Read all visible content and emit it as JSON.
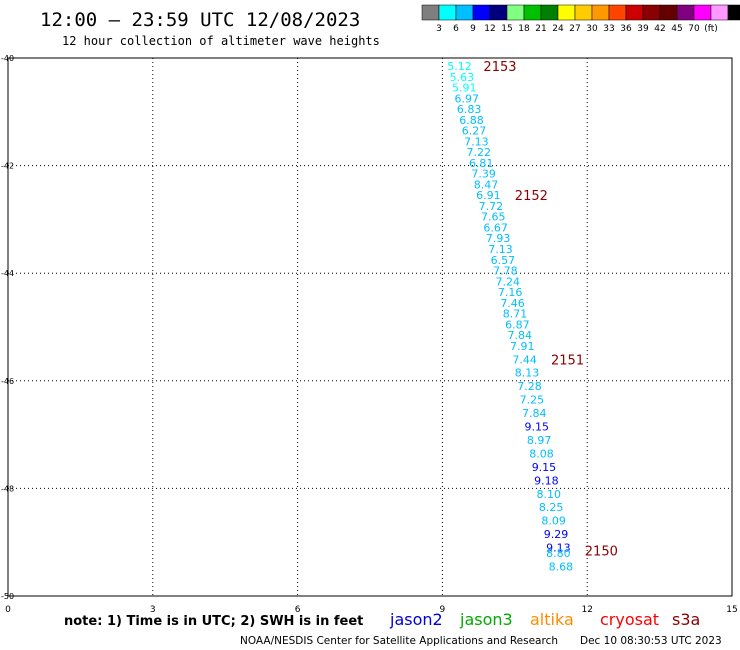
{
  "header": {
    "title": "12:00 – 23:59 UTC 12/08/2023",
    "subtitle": "12 hour collection of altimeter wave heights"
  },
  "color_scale": {
    "colors": [
      "#7f7f7f",
      "#00ffff",
      "#00bfff",
      "#0000ff",
      "#00007f",
      "#80ff80",
      "#00c000",
      "#008000",
      "#ffff00",
      "#ffcc00",
      "#ff9900",
      "#ff4500",
      "#cc0000",
      "#8b0000",
      "#660000",
      "#800080",
      "#ff00ff",
      "#ff99ff",
      "#000000"
    ],
    "labels": [
      "3",
      "6",
      "9",
      "12",
      "15",
      "18",
      "21",
      "24",
      "27",
      "30",
      "33",
      "36",
      "39",
      "42",
      "45",
      "70",
      "(ft)"
    ]
  },
  "chart_data": {
    "type": "scatter",
    "xlim": [
      0,
      15
    ],
    "ylim": [
      -50,
      -40
    ],
    "x_ticks": [
      "0",
      "3",
      "6",
      "9",
      "12",
      "15"
    ],
    "y_ticks": [
      "-40",
      "-42",
      "-44",
      "-46",
      "-48",
      "-50"
    ],
    "grid": true,
    "points": [
      {
        "x": 9.1,
        "y": -40.15,
        "v": "5.12",
        "color": "#00ffff"
      },
      {
        "x": 9.15,
        "y": -40.35,
        "v": "5.63",
        "color": "#00ffff"
      },
      {
        "x": 9.2,
        "y": -40.55,
        "v": "5.91",
        "color": "#00ffff"
      },
      {
        "x": 9.25,
        "y": -40.75,
        "v": "6.97",
        "color": "#00bfff"
      },
      {
        "x": 9.3,
        "y": -40.95,
        "v": "6.83",
        "color": "#00bfff"
      },
      {
        "x": 9.35,
        "y": -41.15,
        "v": "6.88",
        "color": "#00bfff"
      },
      {
        "x": 9.4,
        "y": -41.35,
        "v": "6.27",
        "color": "#00bfff"
      },
      {
        "x": 9.45,
        "y": -41.55,
        "v": "7.13",
        "color": "#00bfff"
      },
      {
        "x": 9.5,
        "y": -41.75,
        "v": "7.22",
        "color": "#00bfff"
      },
      {
        "x": 9.55,
        "y": -41.95,
        "v": "6.81",
        "color": "#00bfff"
      },
      {
        "x": 9.6,
        "y": -42.15,
        "v": "7.39",
        "color": "#00bfff"
      },
      {
        "x": 9.65,
        "y": -42.35,
        "v": "8.47",
        "color": "#00bfff"
      },
      {
        "x": 9.7,
        "y": -42.55,
        "v": "6.91",
        "color": "#00bfff"
      },
      {
        "x": 9.75,
        "y": -42.75,
        "v": "7.72",
        "color": "#00bfff"
      },
      {
        "x": 9.8,
        "y": -42.95,
        "v": "7.65",
        "color": "#00bfff"
      },
      {
        "x": 9.85,
        "y": -43.15,
        "v": "6.67",
        "color": "#00bfff"
      },
      {
        "x": 9.9,
        "y": -43.35,
        "v": "7.93",
        "color": "#00bfff"
      },
      {
        "x": 9.95,
        "y": -43.55,
        "v": "7.13",
        "color": "#00bfff"
      },
      {
        "x": 10.0,
        "y": -43.75,
        "v": "6.57",
        "color": "#00bfff"
      },
      {
        "x": 10.05,
        "y": -43.95,
        "v": "7.78",
        "color": "#00bfff"
      },
      {
        "x": 10.1,
        "y": -44.15,
        "v": "7.24",
        "color": "#00bfff"
      },
      {
        "x": 10.15,
        "y": -44.35,
        "v": "7.16",
        "color": "#00bfff"
      },
      {
        "x": 10.2,
        "y": -44.55,
        "v": "7.46",
        "color": "#00bfff"
      },
      {
        "x": 10.25,
        "y": -44.75,
        "v": "8.71",
        "color": "#00bfff"
      },
      {
        "x": 10.3,
        "y": -44.95,
        "v": "6.87",
        "color": "#00bfff"
      },
      {
        "x": 10.35,
        "y": -45.15,
        "v": "7.84",
        "color": "#00bfff"
      },
      {
        "x": 10.4,
        "y": -45.35,
        "v": "7.91",
        "color": "#00bfff"
      },
      {
        "x": 10.45,
        "y": -45.6,
        "v": "7.44",
        "color": "#00bfff"
      },
      {
        "x": 10.5,
        "y": -45.85,
        "v": "8.13",
        "color": "#00bfff"
      },
      {
        "x": 10.55,
        "y": -46.1,
        "v": "7.28",
        "color": "#00bfff"
      },
      {
        "x": 10.6,
        "y": -46.35,
        "v": "7.25",
        "color": "#00bfff"
      },
      {
        "x": 10.65,
        "y": -46.6,
        "v": "7.84",
        "color": "#00bfff"
      },
      {
        "x": 10.7,
        "y": -46.85,
        "v": "9.15",
        "color": "#0000ff"
      },
      {
        "x": 10.75,
        "y": -47.1,
        "v": "8.97",
        "color": "#00bfff"
      },
      {
        "x": 10.8,
        "y": -47.35,
        "v": "8.08",
        "color": "#00bfff"
      },
      {
        "x": 10.85,
        "y": -47.6,
        "v": "9.15",
        "color": "#0000ff"
      },
      {
        "x": 10.9,
        "y": -47.85,
        "v": "9.18",
        "color": "#0000ff"
      },
      {
        "x": 10.95,
        "y": -48.1,
        "v": "8.10",
        "color": "#00bfff"
      },
      {
        "x": 11.0,
        "y": -48.35,
        "v": "8.25",
        "color": "#00bfff"
      },
      {
        "x": 11.05,
        "y": -48.6,
        "v": "8.09",
        "color": "#00bfff"
      },
      {
        "x": 11.1,
        "y": -48.85,
        "v": "9.29",
        "color": "#0000ff"
      },
      {
        "x": 11.15,
        "y": -49.1,
        "v": "9.13",
        "color": "#0000ff"
      },
      {
        "x": 11.15,
        "y": -49.2,
        "v": "8.80",
        "color": "#00bfff"
      },
      {
        "x": 11.2,
        "y": -49.45,
        "v": "8.68",
        "color": "#00bfff"
      }
    ],
    "time_labels": [
      {
        "text": "2153",
        "x": 9.85,
        "y": -40.15
      },
      {
        "text": "2152",
        "x": 10.5,
        "y": -42.55
      },
      {
        "text": "2151",
        "x": 11.25,
        "y": -45.6
      },
      {
        "text": "2150",
        "x": 11.95,
        "y": -49.15
      }
    ]
  },
  "legend": {
    "note": "note: 1) Time is in UTC; 2) SWH is in feet",
    "satellites": [
      {
        "name": "jason2",
        "color": "#0000dd"
      },
      {
        "name": "jason3",
        "color": "#00aa00"
      },
      {
        "name": "altika",
        "color": "#ff8c00"
      },
      {
        "name": "cryosat",
        "color": "#ff0000"
      },
      {
        "name": "s3a",
        "color": "#8b0000"
      }
    ]
  },
  "footer": {
    "credit": "NOAA/NESDIS Center for Satellite Applications and Research",
    "timestamp": "Dec 10 08:30:53 UTC 2023"
  }
}
